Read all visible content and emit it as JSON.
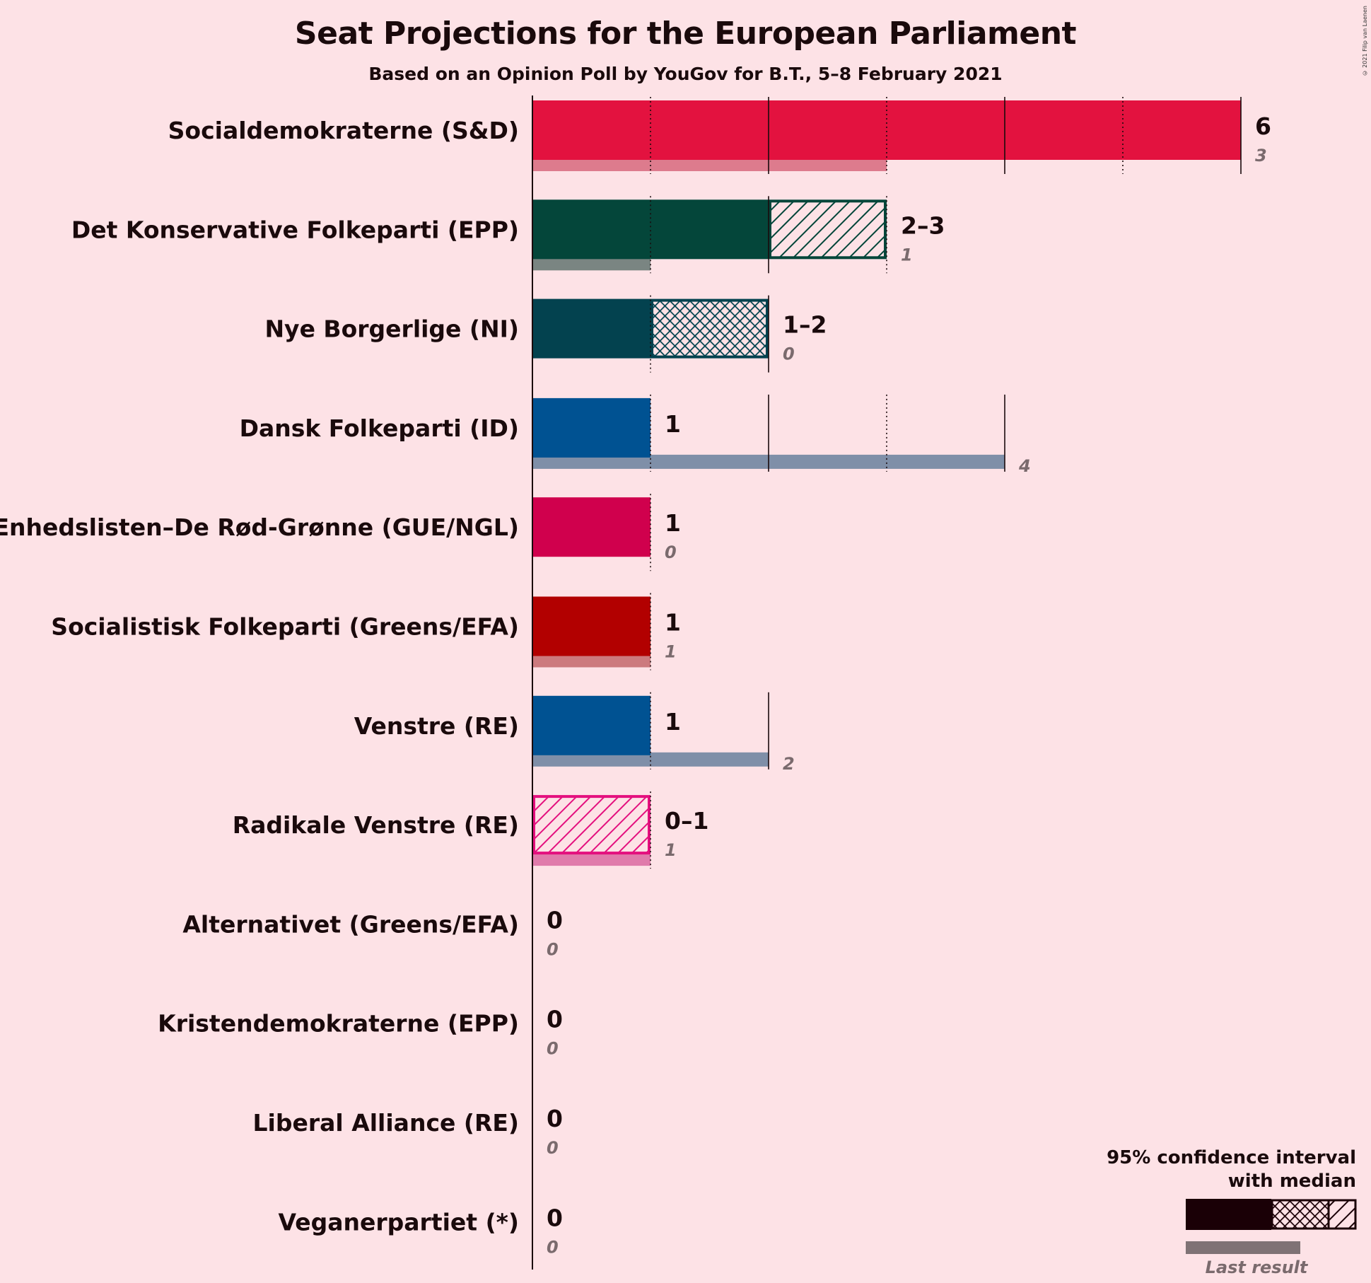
{
  "chart_data": {
    "type": "bar",
    "title": "Seat Projections for the European Parliament",
    "subtitle": "Based on an Opinion Poll by YouGov for B.T., 5–8 February 2021",
    "copyright": "© 2021 Filip van Laenen",
    "xlim": [
      0,
      6
    ],
    "parties": [
      {
        "name": "Socialdemokraterne (S&D)",
        "median": 6,
        "low": 6,
        "high": 6,
        "label": "6",
        "last": 3,
        "last_label": "3",
        "color": "#E3123F",
        "last_color": "#DD7B8D"
      },
      {
        "name": "Det Konservative Folkeparti (EPP)",
        "median": 2,
        "low": 2,
        "high": 3,
        "label": "2–3",
        "last": 1,
        "last_label": "1",
        "color": "#04463A",
        "last_color": "#7A8582"
      },
      {
        "name": "Nye Borgerlige (NI)",
        "median": 1,
        "low": 1,
        "high": 2,
        "label": "1–2",
        "last": 0,
        "last_label": "0",
        "color": "#03424F",
        "last_color": "#7B8890"
      },
      {
        "name": "Dansk Folkeparti (ID)",
        "median": 1,
        "low": 1,
        "high": 1,
        "label": "1",
        "last": 4,
        "last_label": "4",
        "color": "#005292",
        "last_color": "#7F8FA8"
      },
      {
        "name": "Enhedslisten–De Rød-Grønne (GUE/NGL)",
        "median": 1,
        "low": 1,
        "high": 1,
        "label": "1",
        "last": 0,
        "last_label": "0",
        "color": "#D0004D",
        "last_color": "#D57A96"
      },
      {
        "name": "Socialistisk Folkeparti (Greens/EFA)",
        "median": 1,
        "low": 1,
        "high": 1,
        "label": "1",
        "last": 1,
        "last_label": "1",
        "color": "#B20000",
        "last_color": "#CC7A7E"
      },
      {
        "name": "Venstre (RE)",
        "median": 1,
        "low": 1,
        "high": 1,
        "label": "1",
        "last": 2,
        "last_label": "2",
        "color": "#005292",
        "last_color": "#7F8FA8"
      },
      {
        "name": "Radikale Venstre (RE)",
        "median": 0,
        "low": 0,
        "high": 1,
        "label": "0–1",
        "last": 1,
        "last_label": "1",
        "color": "#E4107E",
        "last_color": "#E07BAB"
      },
      {
        "name": "Alternativet (Greens/EFA)",
        "median": 0,
        "low": 0,
        "high": 0,
        "label": "0",
        "last": 0,
        "last_label": "0",
        "color": "#2B8738",
        "last_color": "#8AA88C"
      },
      {
        "name": "Kristendemokraterne (EPP)",
        "median": 0,
        "low": 0,
        "high": 0,
        "label": "0",
        "last": 0,
        "last_label": "0",
        "color": "#1F3F6E",
        "last_color": "#8590A3"
      },
      {
        "name": "Liberal Alliance (RE)",
        "median": 0,
        "low": 0,
        "high": 0,
        "label": "0",
        "last": 0,
        "last_label": "0",
        "color": "#21C2D4",
        "last_color": "#8FC7CE"
      },
      {
        "name": "Veganerpartiet (*)",
        "median": 0,
        "low": 0,
        "high": 0,
        "label": "0",
        "last": 0,
        "last_label": "0",
        "color": "#5A8A2A",
        "last_color": "#9DAE8E"
      }
    ],
    "legend": {
      "line1": "95% confidence interval",
      "line2": "with median",
      "last_result": "Last result",
      "color": "#1A0006",
      "last_color": "#7F7275"
    }
  }
}
